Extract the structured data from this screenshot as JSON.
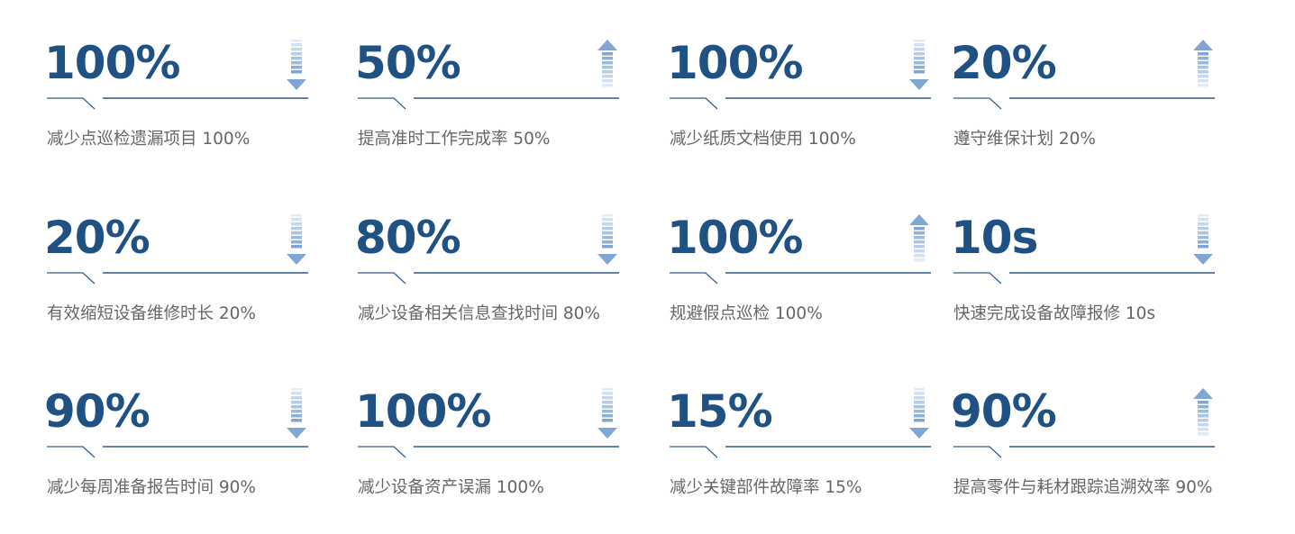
{
  "colors": {
    "number": "#1f5183",
    "arrow": "#7fa6d4",
    "line": "#2d5d8e",
    "label": "#666666"
  },
  "cards": [
    {
      "value": "100%",
      "label": "减少点巡检遗漏项目 100%",
      "arrow": "down"
    },
    {
      "value": "50%",
      "label": "提高准时工作完成率 50%",
      "arrow": "up"
    },
    {
      "value": "100%",
      "label": "减少纸质文档使用 100%",
      "arrow": "down"
    },
    {
      "value": "20%",
      "label": "遵守维保计划 20%",
      "arrow": "up"
    },
    {
      "value": "20%",
      "label": "有效缩短设备维修时长 20%",
      "arrow": "down"
    },
    {
      "value": "80%",
      "label": "减少设备相关信息查找时间 80%",
      "arrow": "down"
    },
    {
      "value": "100%",
      "label": "规避假点巡检 100%",
      "arrow": "up"
    },
    {
      "value": "10s",
      "label": "快速完成设备故障报修 10s",
      "arrow": "down"
    },
    {
      "value": "90%",
      "label": "减少每周准备报告时间 90%",
      "arrow": "down"
    },
    {
      "value": "100%",
      "label": "减少设备资产误漏 100%",
      "arrow": "down"
    },
    {
      "value": "15%",
      "label": "减少关键部件故障率 15%",
      "arrow": "down"
    },
    {
      "value": "90%",
      "label": "提高零件与耗材跟踪追溯效率 90%",
      "arrow": "up"
    }
  ]
}
